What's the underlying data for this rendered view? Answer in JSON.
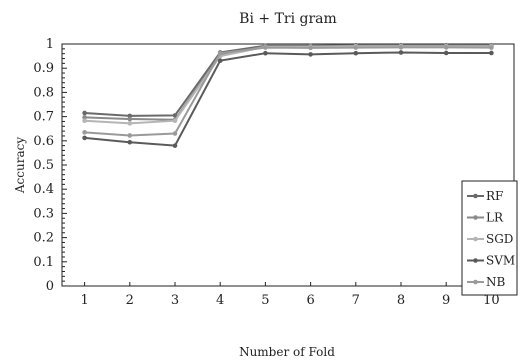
{
  "chart_data": {
    "type": "line",
    "title": "Bi + Tri gram",
    "xlabel": "Number of Fold",
    "ylabel": "Accuracy",
    "x": [
      1,
      2,
      3,
      4,
      5,
      6,
      7,
      8,
      9,
      10
    ],
    "x_tick_labels": [
      "1",
      "2",
      "3",
      "4",
      "5",
      "6",
      "7",
      "8",
      "9",
      "10"
    ],
    "ylim": [
      0,
      1
    ],
    "y_tick_labels": [
      "0",
      "0.1",
      "0.2",
      "0.3",
      "0.4",
      "0.5",
      "0.6",
      "0.7",
      "0.8",
      "0.9",
      "1"
    ],
    "grid": false,
    "legend_position": "right",
    "series": [
      {
        "name": "RF",
        "color": "#6a6a6a",
        "values": [
          0.715,
          0.703,
          0.705,
          0.965,
          0.993,
          0.993,
          0.995,
          0.995,
          0.995,
          0.995
        ]
      },
      {
        "name": "LR",
        "color": "#8a8a8a",
        "values": [
          0.697,
          0.69,
          0.687,
          0.955,
          0.99,
          0.99,
          0.992,
          0.993,
          0.993,
          0.993
        ]
      },
      {
        "name": "SGD",
        "color": "#b5b5b5",
        "values": [
          0.683,
          0.672,
          0.683,
          0.95,
          0.988,
          0.988,
          0.99,
          0.99,
          0.99,
          0.99
        ]
      },
      {
        "name": "SVM",
        "color": "#5a5a5a",
        "values": [
          0.612,
          0.594,
          0.58,
          0.931,
          0.962,
          0.957,
          0.962,
          0.965,
          0.963,
          0.963
        ]
      },
      {
        "name": "NB",
        "color": "#9a9a9a",
        "values": [
          0.635,
          0.622,
          0.63,
          0.962,
          0.985,
          0.984,
          0.985,
          0.986,
          0.986,
          0.985
        ]
      }
    ]
  }
}
